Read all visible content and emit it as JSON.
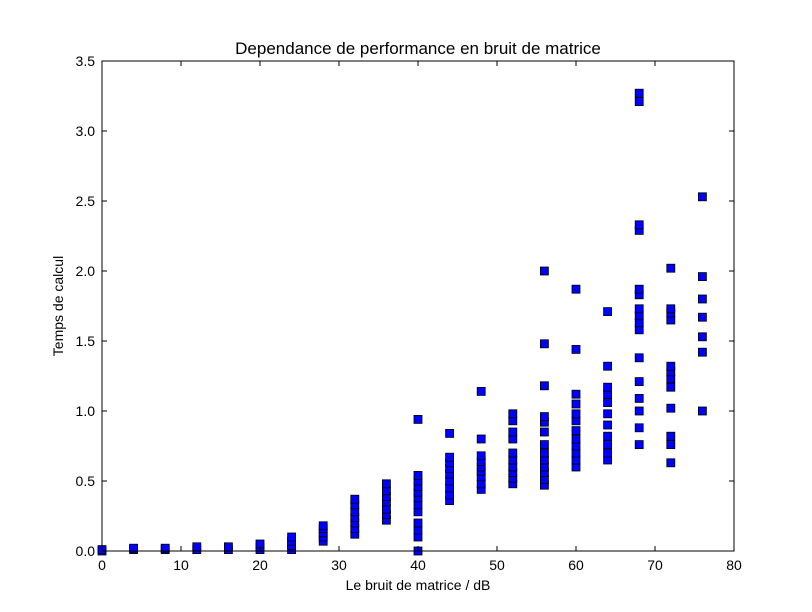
{
  "chart_data": {
    "type": "scatter",
    "title": "Dependance de performance en bruit de matrice",
    "xlabel": "Le bruit de matrice / dB",
    "ylabel": "Temps de calcul",
    "xlim": [
      0,
      80
    ],
    "ylim": [
      0,
      3.5
    ],
    "xticks": [
      0,
      10,
      20,
      30,
      40,
      50,
      60,
      70,
      80
    ],
    "yticks": [
      0.0,
      0.5,
      1.0,
      1.5,
      2.0,
      2.5,
      3.0,
      3.5
    ],
    "xtick_labels": [
      "0",
      "10",
      "20",
      "30",
      "40",
      "50",
      "60",
      "70",
      "80"
    ],
    "ytick_labels": [
      "0.0",
      "0.5",
      "1.0",
      "1.5",
      "2.0",
      "2.5",
      "3.0",
      "3.5"
    ],
    "grid": false,
    "marker": "square",
    "marker_color": "#0000ff",
    "points": [
      {
        "x": 0,
        "y": 0.0
      },
      {
        "x": 0,
        "y": 0.01
      },
      {
        "x": 4,
        "y": 0.01
      },
      {
        "x": 4,
        "y": 0.02
      },
      {
        "x": 8,
        "y": 0.01
      },
      {
        "x": 8,
        "y": 0.02
      },
      {
        "x": 12,
        "y": 0.01
      },
      {
        "x": 12,
        "y": 0.03
      },
      {
        "x": 16,
        "y": 0.01
      },
      {
        "x": 16,
        "y": 0.03
      },
      {
        "x": 20,
        "y": 0.01
      },
      {
        "x": 20,
        "y": 0.03
      },
      {
        "x": 20,
        "y": 0.05
      },
      {
        "x": 24,
        "y": 0.01
      },
      {
        "x": 24,
        "y": 0.04
      },
      {
        "x": 24,
        "y": 0.07
      },
      {
        "x": 24,
        "y": 0.1
      },
      {
        "x": 28,
        "y": 0.07
      },
      {
        "x": 28,
        "y": 0.1
      },
      {
        "x": 28,
        "y": 0.13
      },
      {
        "x": 28,
        "y": 0.16
      },
      {
        "x": 28,
        "y": 0.18
      },
      {
        "x": 32,
        "y": 0.12
      },
      {
        "x": 32,
        "y": 0.16
      },
      {
        "x": 32,
        "y": 0.2
      },
      {
        "x": 32,
        "y": 0.24
      },
      {
        "x": 32,
        "y": 0.28
      },
      {
        "x": 32,
        "y": 0.33
      },
      {
        "x": 32,
        "y": 0.37
      },
      {
        "x": 36,
        "y": 0.22
      },
      {
        "x": 36,
        "y": 0.26
      },
      {
        "x": 36,
        "y": 0.3
      },
      {
        "x": 36,
        "y": 0.35
      },
      {
        "x": 36,
        "y": 0.39
      },
      {
        "x": 36,
        "y": 0.43
      },
      {
        "x": 36,
        "y": 0.48
      },
      {
        "x": 40,
        "y": 0.0
      },
      {
        "x": 40,
        "y": 0.1
      },
      {
        "x": 40,
        "y": 0.15
      },
      {
        "x": 40,
        "y": 0.2
      },
      {
        "x": 40,
        "y": 0.28
      },
      {
        "x": 40,
        "y": 0.33
      },
      {
        "x": 40,
        "y": 0.38
      },
      {
        "x": 40,
        "y": 0.42
      },
      {
        "x": 40,
        "y": 0.46
      },
      {
        "x": 40,
        "y": 0.5
      },
      {
        "x": 40,
        "y": 0.54
      },
      {
        "x": 40,
        "y": 0.94
      },
      {
        "x": 44,
        "y": 0.36
      },
      {
        "x": 44,
        "y": 0.4
      },
      {
        "x": 44,
        "y": 0.45
      },
      {
        "x": 44,
        "y": 0.5
      },
      {
        "x": 44,
        "y": 0.55
      },
      {
        "x": 44,
        "y": 0.59
      },
      {
        "x": 44,
        "y": 0.63
      },
      {
        "x": 44,
        "y": 0.67
      },
      {
        "x": 44,
        "y": 0.84
      },
      {
        "x": 48,
        "y": 0.44
      },
      {
        "x": 48,
        "y": 0.48
      },
      {
        "x": 48,
        "y": 0.53
      },
      {
        "x": 48,
        "y": 0.57
      },
      {
        "x": 48,
        "y": 0.6
      },
      {
        "x": 48,
        "y": 0.64
      },
      {
        "x": 48,
        "y": 0.68
      },
      {
        "x": 48,
        "y": 0.8
      },
      {
        "x": 48,
        "y": 1.14
      },
      {
        "x": 52,
        "y": 0.48
      },
      {
        "x": 52,
        "y": 0.52
      },
      {
        "x": 52,
        "y": 0.56
      },
      {
        "x": 52,
        "y": 0.6
      },
      {
        "x": 52,
        "y": 0.65
      },
      {
        "x": 52,
        "y": 0.7
      },
      {
        "x": 52,
        "y": 0.8
      },
      {
        "x": 52,
        "y": 0.85
      },
      {
        "x": 52,
        "y": 0.93
      },
      {
        "x": 52,
        "y": 0.98
      },
      {
        "x": 56,
        "y": 0.47
      },
      {
        "x": 56,
        "y": 0.51
      },
      {
        "x": 56,
        "y": 0.56
      },
      {
        "x": 56,
        "y": 0.6
      },
      {
        "x": 56,
        "y": 0.65
      },
      {
        "x": 56,
        "y": 0.7
      },
      {
        "x": 56,
        "y": 0.76
      },
      {
        "x": 56,
        "y": 0.85
      },
      {
        "x": 56,
        "y": 0.92
      },
      {
        "x": 56,
        "y": 0.96
      },
      {
        "x": 56,
        "y": 1.18
      },
      {
        "x": 56,
        "y": 1.48
      },
      {
        "x": 56,
        "y": 2.0
      },
      {
        "x": 60,
        "y": 0.6
      },
      {
        "x": 60,
        "y": 0.65
      },
      {
        "x": 60,
        "y": 0.7
      },
      {
        "x": 60,
        "y": 0.75
      },
      {
        "x": 60,
        "y": 0.8
      },
      {
        "x": 60,
        "y": 0.86
      },
      {
        "x": 60,
        "y": 0.93
      },
      {
        "x": 60,
        "y": 0.98
      },
      {
        "x": 60,
        "y": 1.05
      },
      {
        "x": 60,
        "y": 1.12
      },
      {
        "x": 60,
        "y": 1.44
      },
      {
        "x": 60,
        "y": 1.87
      },
      {
        "x": 64,
        "y": 0.65
      },
      {
        "x": 64,
        "y": 0.7
      },
      {
        "x": 64,
        "y": 0.76
      },
      {
        "x": 64,
        "y": 0.82
      },
      {
        "x": 64,
        "y": 0.9
      },
      {
        "x": 64,
        "y": 0.98
      },
      {
        "x": 64,
        "y": 1.06
      },
      {
        "x": 64,
        "y": 1.12
      },
      {
        "x": 64,
        "y": 1.17
      },
      {
        "x": 64,
        "y": 1.32
      },
      {
        "x": 64,
        "y": 1.71
      },
      {
        "x": 68,
        "y": 0.76
      },
      {
        "x": 68,
        "y": 0.88
      },
      {
        "x": 68,
        "y": 1.0
      },
      {
        "x": 68,
        "y": 1.09
      },
      {
        "x": 68,
        "y": 1.21
      },
      {
        "x": 68,
        "y": 1.38
      },
      {
        "x": 68,
        "y": 1.58
      },
      {
        "x": 68,
        "y": 1.63
      },
      {
        "x": 68,
        "y": 1.68
      },
      {
        "x": 68,
        "y": 1.73
      },
      {
        "x": 68,
        "y": 1.83
      },
      {
        "x": 68,
        "y": 1.87
      },
      {
        "x": 68,
        "y": 2.29
      },
      {
        "x": 68,
        "y": 2.33
      },
      {
        "x": 68,
        "y": 3.21
      },
      {
        "x": 68,
        "y": 3.27
      },
      {
        "x": 72,
        "y": 0.63
      },
      {
        "x": 72,
        "y": 0.76
      },
      {
        "x": 72,
        "y": 0.82
      },
      {
        "x": 72,
        "y": 1.02
      },
      {
        "x": 72,
        "y": 1.17
      },
      {
        "x": 72,
        "y": 1.23
      },
      {
        "x": 72,
        "y": 1.28
      },
      {
        "x": 72,
        "y": 1.32
      },
      {
        "x": 72,
        "y": 1.65
      },
      {
        "x": 72,
        "y": 1.7
      },
      {
        "x": 72,
        "y": 1.73
      },
      {
        "x": 72,
        "y": 2.02
      },
      {
        "x": 76,
        "y": 1.0
      },
      {
        "x": 76,
        "y": 1.42
      },
      {
        "x": 76,
        "y": 1.53
      },
      {
        "x": 76,
        "y": 1.67
      },
      {
        "x": 76,
        "y": 1.8
      },
      {
        "x": 76,
        "y": 1.96
      },
      {
        "x": 76,
        "y": 2.53
      }
    ]
  }
}
